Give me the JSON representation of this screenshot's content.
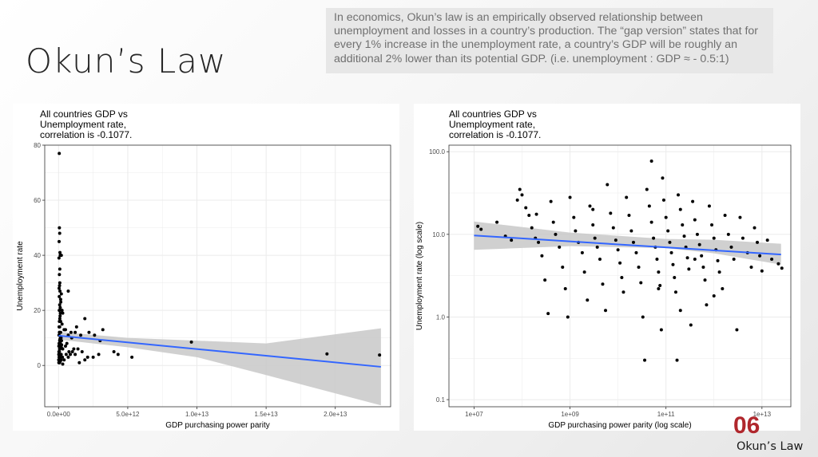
{
  "slide": {
    "title": "Okun’s Law",
    "description": "In economics, Okun’s law is an empirically observed relationship between unemployment and losses in a country’s production. The “gap version” states that for every 1% increase in the unemployment rate, a country’s GDP will be roughly an additional 2% lower than its potential GDP. (i.e. unemployment : GDP ≈ - 0.5:1)",
    "footer_number": "06",
    "footer_label": "Okun’s Law"
  },
  "colors": {
    "point": "#000000",
    "fit_line": "#3366ff",
    "confidence_band": "#c8c8c8",
    "grid": "#ebebeb",
    "accent": "#b0272d"
  },
  "chart_data": [
    {
      "type": "scatter",
      "title_lines": [
        "All countries GDP vs",
        "Unemployment rate,",
        "correlation is -0.1077."
      ],
      "xlabel": "GDP purchasing power parity",
      "ylabel": "Unemployment rate",
      "x_scale": "linear",
      "y_scale": "linear",
      "xlim": [
        -1000000000000.0,
        24000000000000.0
      ],
      "ylim": [
        -15,
        80
      ],
      "x_ticks": [
        0,
        5000000000000.0,
        10000000000000.0,
        15000000000000.0,
        20000000000000.0
      ],
      "x_tick_labels": [
        "0.0e+00",
        "5.0e+12",
        "1.0e+13",
        "1.5e+13",
        "2.0e+13"
      ],
      "y_ticks": [
        0,
        20,
        40,
        60,
        80
      ],
      "y_tick_labels": [
        "0",
        "20",
        "40",
        "60",
        "80"
      ],
      "grid": true,
      "fit_line": {
        "x": [
          0,
          23300000000000.0
        ],
        "y": [
          10.8,
          -0.5
        ]
      },
      "confidence_band": {
        "x": [
          0,
          5000000000000.0,
          10000000000000.0,
          15000000000000.0,
          23300000000000.0
        ],
        "lower": [
          9.4,
          6.6,
          3.0,
          -3.5,
          -14.5
        ],
        "upper": [
          12.2,
          10.0,
          9.0,
          8.0,
          13.5
        ]
      },
      "points": [
        [
          50000000000.0,
          77
        ],
        [
          60000000000.0,
          50
        ],
        [
          80000000000.0,
          48
        ],
        [
          40000000000.0,
          45
        ],
        [
          100000000000.0,
          41
        ],
        [
          120000000000.0,
          40
        ],
        [
          200000000000.0,
          40
        ],
        [
          30000000000.0,
          39
        ],
        [
          60000000000.0,
          33
        ],
        [
          90000000000.0,
          30
        ],
        [
          70000000000.0,
          29
        ],
        [
          100000000000.0,
          27
        ],
        [
          200000000000.0,
          26
        ],
        [
          700000000000.0,
          27
        ],
        [
          150000000000.0,
          24
        ],
        [
          160000000000.0,
          23
        ],
        [
          80000000000.0,
          22
        ],
        [
          120000000000.0,
          21
        ],
        [
          50000000000.0,
          20
        ],
        [
          250000000000.0,
          20
        ],
        [
          300000000000.0,
          19
        ],
        [
          110000000000.0,
          18
        ],
        [
          90000000000.0,
          17
        ],
        [
          1900000000000.0,
          17
        ],
        [
          60000000000.0,
          16
        ],
        [
          250000000000.0,
          15
        ],
        [
          80000000000.0,
          14
        ],
        [
          1300000000000.0,
          14
        ],
        [
          400000000000.0,
          13
        ],
        [
          500000000000.0,
          13
        ],
        [
          3200000000000.0,
          13
        ],
        [
          150000000000.0,
          12
        ],
        [
          2200000000000.0,
          12
        ],
        [
          900000000000.0,
          12
        ],
        [
          1200000000000.0,
          12
        ],
        [
          60000000000.0,
          12
        ],
        [
          2600000000000.0,
          11
        ],
        [
          30000000000.0,
          11
        ],
        [
          1600000000000.0,
          11
        ],
        [
          700000000000.0,
          11
        ],
        [
          180000000000.0,
          10
        ],
        [
          950000000000.0,
          10
        ],
        [
          140000000000.0,
          10
        ],
        [
          210000000000.0,
          9
        ],
        [
          3000000000000.0,
          9
        ],
        [
          9600000000000.0,
          8.5
        ],
        [
          80000000000.0,
          9
        ],
        [
          130000000000.0,
          8
        ],
        [
          40000000000.0,
          8
        ],
        [
          600000000000.0,
          8
        ],
        [
          100000000000.0,
          7
        ],
        [
          160000000000.0,
          7
        ],
        [
          500000000000.0,
          7
        ],
        [
          20000000000.0,
          7
        ],
        [
          70000000000.0,
          6
        ],
        [
          1100000000000.0,
          6
        ],
        [
          1400000000000.0,
          6
        ],
        [
          90000000000.0,
          6
        ],
        [
          300000000000.0,
          6
        ],
        [
          25000000000.0,
          5
        ],
        [
          750000000000.0,
          5
        ],
        [
          1000000000000.0,
          5
        ],
        [
          1700000000000.0,
          5
        ],
        [
          4000000000000.0,
          5
        ],
        [
          60000000000.0,
          5
        ],
        [
          550000000000.0,
          4
        ],
        [
          850000000000.0,
          4
        ],
        [
          2900000000000.0,
          4
        ],
        [
          4300000000000.0,
          4
        ],
        [
          15000000000.0,
          4
        ],
        [
          190000000000.0,
          4
        ],
        [
          1200000000000.0,
          4
        ],
        [
          80000000000.0,
          3
        ],
        [
          280000000000.0,
          3
        ],
        [
          5300000000000.0,
          3
        ],
        [
          2100000000000.0,
          3
        ],
        [
          2500000000000.0,
          3
        ],
        [
          40000000000.0,
          3
        ],
        [
          700000000000.0,
          3
        ],
        [
          30000000000.0,
          2
        ],
        [
          180000000000.0,
          2
        ],
        [
          1900000000000.0,
          2
        ],
        [
          10000000000.0,
          2
        ],
        [
          90000000000.0,
          2
        ],
        [
          400000000000.0,
          2
        ],
        [
          20000000000.0,
          1
        ],
        [
          70000000000.0,
          1
        ],
        [
          1500000000000.0,
          1
        ],
        [
          50000000000.0,
          1
        ],
        [
          300000000000.0,
          0.5
        ],
        [
          120000000000.0,
          1.5
        ],
        [
          60000000000.0,
          3.5
        ],
        [
          200000000000.0,
          6.5
        ],
        [
          100000000000.0,
          9.5
        ],
        [
          19400000000000.0,
          4.2
        ],
        [
          23200000000000.0,
          3.8
        ],
        [
          40000000000.0,
          14
        ],
        [
          150000000000.0,
          16
        ],
        [
          50000000000.0,
          25
        ],
        [
          90000000000.0,
          35
        ],
        [
          40000000000.0,
          28
        ],
        [
          130000000000.0,
          19
        ],
        [
          70000000000.0,
          12
        ],
        [
          220000000000.0,
          7.5
        ]
      ]
    },
    {
      "type": "scatter",
      "title_lines": [
        "All countries GDP vs",
        "Unemployment rate,",
        "correlation is -0.1077."
      ],
      "xlabel": "GDP purchasing power parity (log scale)",
      "ylabel": "Unemployment rate (log scale)",
      "x_scale": "log",
      "y_scale": "log",
      "xlim": [
        3000000.0,
        40000000000000.0
      ],
      "ylim": [
        0.082,
        120
      ],
      "x_ticks": [
        10000000.0,
        1000000000.0,
        100000000000.0,
        10000000000000.0
      ],
      "x_tick_labels": [
        "1e+07",
        "1e+09",
        "1e+11",
        "1e+13"
      ],
      "y_ticks": [
        0.1,
        1.0,
        10.0,
        100.0
      ],
      "y_tick_labels": [
        "0.1",
        "1.0",
        "10.0",
        "100.0"
      ],
      "grid": true,
      "fit_line": {
        "x": [
          10000000.0,
          25000000000000.0
        ],
        "y": [
          9.7,
          5.7
        ]
      },
      "confidence_band": {
        "x": [
          10000000.0,
          1000000000.0,
          100000000000.0,
          1000000000000.0,
          25000000000000.0
        ],
        "lower": [
          6.5,
          7.2,
          6.8,
          5.9,
          4.3
        ],
        "upper": [
          14.3,
          10.5,
          8.8,
          8.6,
          7.7
        ]
      },
      "points": [
        [
          12000000.0,
          12.5
        ],
        [
          30000000.0,
          14
        ],
        [
          45000000.0,
          9.5
        ],
        [
          60000000.0,
          8.5
        ],
        [
          80000000.0,
          26
        ],
        [
          90000000.0,
          35
        ],
        [
          100000000.0,
          30
        ],
        [
          120000000.0,
          21
        ],
        [
          140000000.0,
          17
        ],
        [
          160000000.0,
          12
        ],
        [
          190000000.0,
          9
        ],
        [
          220000000.0,
          8
        ],
        [
          260000000.0,
          5.5
        ],
        [
          300000000.0,
          2.8
        ],
        [
          350000000.0,
          1.1
        ],
        [
          400000000.0,
          25
        ],
        [
          450000000.0,
          14
        ],
        [
          500000000.0,
          10
        ],
        [
          600000000.0,
          7
        ],
        [
          700000000.0,
          4
        ],
        [
          800000000.0,
          2.2
        ],
        [
          900000000.0,
          1.0
        ],
        [
          1000000000.0,
          28
        ],
        [
          1200000000.0,
          16
        ],
        [
          1300000000.0,
          11
        ],
        [
          1500000000.0,
          8
        ],
        [
          1800000000.0,
          6
        ],
        [
          2000000000.0,
          3.5
        ],
        [
          2300000000.0,
          1.6
        ],
        [
          2600000000.0,
          22
        ],
        [
          3000000000.0,
          13
        ],
        [
          3300000000.0,
          9
        ],
        [
          3700000000.0,
          7
        ],
        [
          4200000000.0,
          5
        ],
        [
          4800000000.0,
          2.5
        ],
        [
          5500000000.0,
          1.2
        ],
        [
          6000000000.0,
          40
        ],
        [
          7000000000.0,
          18
        ],
        [
          8000000000.0,
          12
        ],
        [
          9000000000.0,
          8.5
        ],
        [
          10000000000.0,
          6.5
        ],
        [
          11000000000.0,
          4.5
        ],
        [
          12000000000.0,
          3
        ],
        [
          13000000000.0,
          2
        ],
        [
          15000000000.0,
          28
        ],
        [
          17000000000.0,
          17
        ],
        [
          19000000000.0,
          11
        ],
        [
          21000000000.0,
          8
        ],
        [
          24000000000.0,
          6
        ],
        [
          27000000000.0,
          4
        ],
        [
          30000000000.0,
          2.6
        ],
        [
          33000000000.0,
          1.0
        ],
        [
          36000000000.0,
          0.3
        ],
        [
          40000000000.0,
          35
        ],
        [
          45000000000.0,
          22
        ],
        [
          50000000000.0,
          14
        ],
        [
          55000000000.0,
          9
        ],
        [
          60000000000.0,
          7
        ],
        [
          65000000000.0,
          5
        ],
        [
          70000000000.0,
          3.5
        ],
        [
          75000000000.0,
          2.4
        ],
        [
          80000000000.0,
          0.7
        ],
        [
          85000000000.0,
          48
        ],
        [
          90000000000.0,
          26
        ],
        [
          100000000000.0,
          16
        ],
        [
          110000000000.0,
          11
        ],
        [
          120000000000.0,
          8
        ],
        [
          130000000000.0,
          6
        ],
        [
          140000000000.0,
          4.3
        ],
        [
          150000000000.0,
          3
        ],
        [
          160000000000.0,
          2
        ],
        [
          170000000000.0,
          0.3
        ],
        [
          180000000000.0,
          30
        ],
        [
          200000000000.0,
          20
        ],
        [
          220000000000.0,
          13
        ],
        [
          240000000000.0,
          9.5
        ],
        [
          260000000000.0,
          7
        ],
        [
          280000000000.0,
          5.2
        ],
        [
          300000000000.0,
          3.8
        ],
        [
          330000000000.0,
          0.8
        ],
        [
          360000000000.0,
          25
        ],
        [
          400000000000.0,
          15
        ],
        [
          450000000000.0,
          10
        ],
        [
          500000000000.0,
          7.5
        ],
        [
          550000000000.0,
          5.5
        ],
        [
          600000000000.0,
          4
        ],
        [
          650000000000.0,
          2.8
        ],
        [
          700000000000.0,
          1.4
        ],
        [
          800000000000.0,
          22
        ],
        [
          900000000000.0,
          13
        ],
        [
          1000000000000.0,
          9
        ],
        [
          1100000000000.0,
          6.5
        ],
        [
          1200000000000.0,
          4.8
        ],
        [
          1300000000000.0,
          3.5
        ],
        [
          1500000000000.0,
          2.2
        ],
        [
          1700000000000.0,
          17
        ],
        [
          2000000000000.0,
          10
        ],
        [
          2300000000000.0,
          7
        ],
        [
          2600000000000.0,
          5
        ],
        [
          3000000000000.0,
          0.7
        ],
        [
          3500000000000.0,
          16
        ],
        [
          4000000000000.0,
          9
        ],
        [
          5000000000000.0,
          6
        ],
        [
          6000000000000.0,
          4
        ],
        [
          7000000000000.0,
          12
        ],
        [
          8000000000000.0,
          8
        ],
        [
          9000000000000.0,
          5.5
        ],
        [
          10000000000000.0,
          3.6
        ],
        [
          13000000000000.0,
          8.5
        ],
        [
          16000000000000.0,
          5
        ],
        [
          22000000000000.0,
          4.4
        ],
        [
          26000000000000.0,
          3.9
        ],
        [
          50000000000.0,
          77
        ],
        [
          14000000.0,
          11.5
        ],
        [
          200000000.0,
          17.5
        ],
        [
          3000000000.0,
          20
        ],
        [
          70000000000.0,
          2.2
        ],
        [
          200000000000.0,
          1.2
        ],
        [
          400000000000.0,
          5
        ],
        [
          1000000000000.0,
          1.8
        ]
      ]
    }
  ]
}
